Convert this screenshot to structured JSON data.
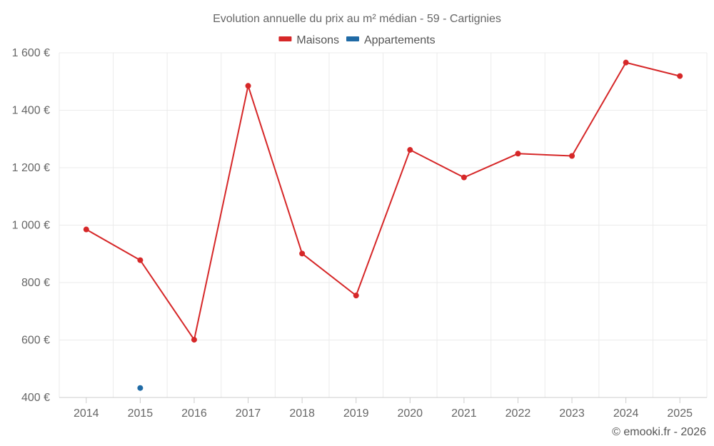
{
  "chart_data": {
    "type": "line",
    "title": "Evolution annuelle du prix au m² médian - 59 - Cartignies",
    "categories": [
      "2014",
      "2015",
      "2016",
      "2017",
      "2018",
      "2019",
      "2020",
      "2021",
      "2022",
      "2023",
      "2024",
      "2025"
    ],
    "series": [
      {
        "name": "Maisons",
        "color": "#d62728",
        "values": [
          985,
          878,
          601,
          1485,
          901,
          755,
          1262,
          1166,
          1249,
          1241,
          1566,
          1519
        ]
      },
      {
        "name": "Appartements",
        "color": "#1f6aa5",
        "values": [
          null,
          433,
          null,
          null,
          null,
          null,
          null,
          null,
          null,
          null,
          null,
          null
        ]
      }
    ],
    "ylim": [
      400,
      1600
    ],
    "yticks": [
      400,
      600,
      800,
      1000,
      1200,
      1400,
      1600
    ],
    "ytick_labels": [
      "400 €",
      "600 €",
      "800 €",
      "1 000 €",
      "1 200 €",
      "1 400 €",
      "1 600 €"
    ],
    "xlabel": "",
    "ylabel": "",
    "grid": true,
    "legend_position": "top-center"
  },
  "credit": "© emooki.fr - 2026"
}
